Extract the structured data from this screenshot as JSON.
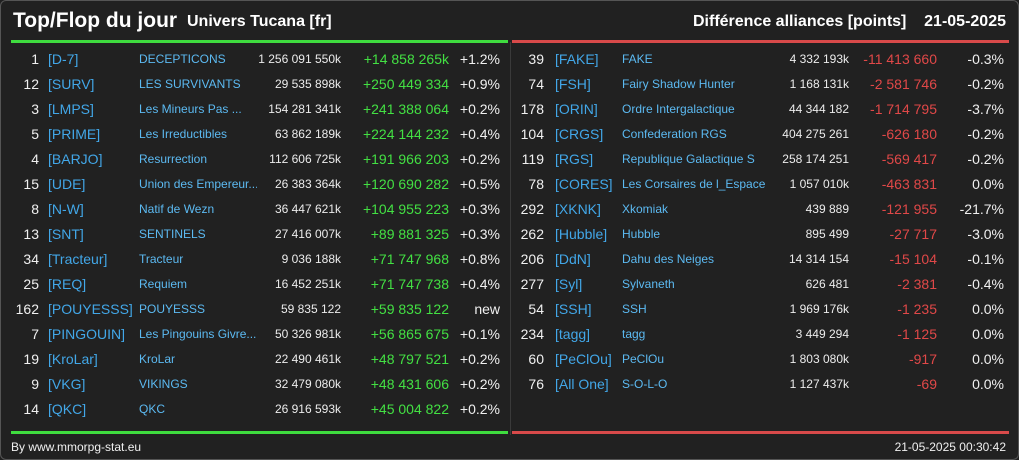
{
  "header": {
    "title": "Top/Flop du jour",
    "universe": "Univers Tucana [fr]",
    "metric": "Différence alliances [points]",
    "date": "21-05-2025"
  },
  "colors": {
    "positive": "#43e043",
    "negative": "#e04848",
    "tag": "#42a7e8",
    "background": "#212121"
  },
  "top": [
    {
      "rank": "1",
      "tag": "[D-7]",
      "name": "DECEPTICONS",
      "points": "1 256 091 550k",
      "diff": "+14 858 265k",
      "pct": "+1.2%"
    },
    {
      "rank": "12",
      "tag": "[SURV]",
      "name": "LES SURVIVANTS",
      "points": "29 535 898k",
      "diff": "+250 449 334",
      "pct": "+0.9%"
    },
    {
      "rank": "3",
      "tag": "[LMPS]",
      "name": "Les Mineurs Pas ...",
      "points": "154 281 341k",
      "diff": "+241 388 064",
      "pct": "+0.2%"
    },
    {
      "rank": "5",
      "tag": "[PRIME]",
      "name": "Les Irreductibles",
      "points": "63 862 189k",
      "diff": "+224 144 232",
      "pct": "+0.4%"
    },
    {
      "rank": "4",
      "tag": "[BARJO]",
      "name": "Resurrection",
      "points": "112 606 725k",
      "diff": "+191 966 203",
      "pct": "+0.2%"
    },
    {
      "rank": "15",
      "tag": "[UDE]",
      "name": "Union des Empereur...",
      "points": "26 383 364k",
      "diff": "+120 690 282",
      "pct": "+0.5%"
    },
    {
      "rank": "8",
      "tag": "[N-W]",
      "name": "Natif de Wezn",
      "points": "36 447 621k",
      "diff": "+104 955 223",
      "pct": "+0.3%"
    },
    {
      "rank": "13",
      "tag": "[SNT]",
      "name": "SENTINELS",
      "points": "27 416 007k",
      "diff": "+89 881 325",
      "pct": "+0.3%"
    },
    {
      "rank": "34",
      "tag": "[Tracteur]",
      "name": "Tracteur",
      "points": "9 036 188k",
      "diff": "+71 747 968",
      "pct": "+0.8%"
    },
    {
      "rank": "25",
      "tag": "[REQ]",
      "name": "Requiem",
      "points": "16 452 251k",
      "diff": "+71 747 738",
      "pct": "+0.4%"
    },
    {
      "rank": "162",
      "tag": "[POUYESSS]",
      "name": "POUYESSS",
      "points": "59 835 122",
      "diff": "+59 835 122",
      "pct": "new"
    },
    {
      "rank": "7",
      "tag": "[PINGOUIN]",
      "name": "Les Pingouins Givre...",
      "points": "50 326 981k",
      "diff": "+56 865 675",
      "pct": "+0.1%"
    },
    {
      "rank": "19",
      "tag": "[KroLar]",
      "name": "KroLar",
      "points": "22 490 461k",
      "diff": "+48 797 521",
      "pct": "+0.2%"
    },
    {
      "rank": "9",
      "tag": "[VKG]",
      "name": "VIKINGS",
      "points": "32 479 080k",
      "diff": "+48 431 606",
      "pct": "+0.2%"
    },
    {
      "rank": "14",
      "tag": "[QKC]",
      "name": "QKC",
      "points": "26 916 593k",
      "diff": "+45 004 822",
      "pct": "+0.2%"
    }
  ],
  "flop": [
    {
      "rank": "39",
      "tag": "[FAKE]",
      "name": "FAKE",
      "points": "4 332 193k",
      "diff": "-11 413 660",
      "pct": "-0.3%"
    },
    {
      "rank": "74",
      "tag": "[FSH]",
      "name": "Fairy Shadow Hunter",
      "points": "1 168 131k",
      "diff": "-2 581 746",
      "pct": "-0.2%"
    },
    {
      "rank": "178",
      "tag": "[ORIN]",
      "name": "Ordre Intergalactique",
      "points": "44 344 182",
      "diff": "-1 714 795",
      "pct": "-3.7%"
    },
    {
      "rank": "104",
      "tag": "[CRGS]",
      "name": "Confederation RGS",
      "points": "404 275 261",
      "diff": "-626 180",
      "pct": "-0.2%"
    },
    {
      "rank": "119",
      "tag": "[RGS]",
      "name": "Republique Galactique S",
      "points": "258 174 251",
      "diff": "-569 417",
      "pct": "-0.2%"
    },
    {
      "rank": "78",
      "tag": "[CORES]",
      "name": "Les Corsaires de l_Espace",
      "points": "1 057 010k",
      "diff": "-463 831",
      "pct": "0.0%"
    },
    {
      "rank": "292",
      "tag": "[XKNK]",
      "name": "Xkomiak",
      "points": "439 889",
      "diff": "-121 955",
      "pct": "-21.7%"
    },
    {
      "rank": "262",
      "tag": "[Hubble]",
      "name": "Hubble",
      "points": "895 499",
      "diff": "-27 717",
      "pct": "-3.0%"
    },
    {
      "rank": "206",
      "tag": "[DdN]",
      "name": "Dahu des Neiges",
      "points": "14 314 154",
      "diff": "-15 104",
      "pct": "-0.1%"
    },
    {
      "rank": "277",
      "tag": "[Syl]",
      "name": "Sylvaneth",
      "points": "626 481",
      "diff": "-2 381",
      "pct": "-0.4%"
    },
    {
      "rank": "54",
      "tag": "[SSH]",
      "name": "SSH",
      "points": "1 969 176k",
      "diff": "-1 235",
      "pct": "0.0%"
    },
    {
      "rank": "234",
      "tag": "[tagg]",
      "name": "tagg",
      "points": "3 449 294",
      "diff": "-1 125",
      "pct": "0.0%"
    },
    {
      "rank": "60",
      "tag": "[PeClOu]",
      "name": "PeClOu",
      "points": "1 803 080k",
      "diff": "-917",
      "pct": "0.0%"
    },
    {
      "rank": "76",
      "tag": "[All One]",
      "name": "S-O-L-O",
      "points": "1 127 437k",
      "diff": "-69",
      "pct": "0.0%"
    }
  ],
  "footer": {
    "credit": "By www.mmorpg-stat.eu",
    "timestamp": "21-05-2025 00:30:42"
  }
}
